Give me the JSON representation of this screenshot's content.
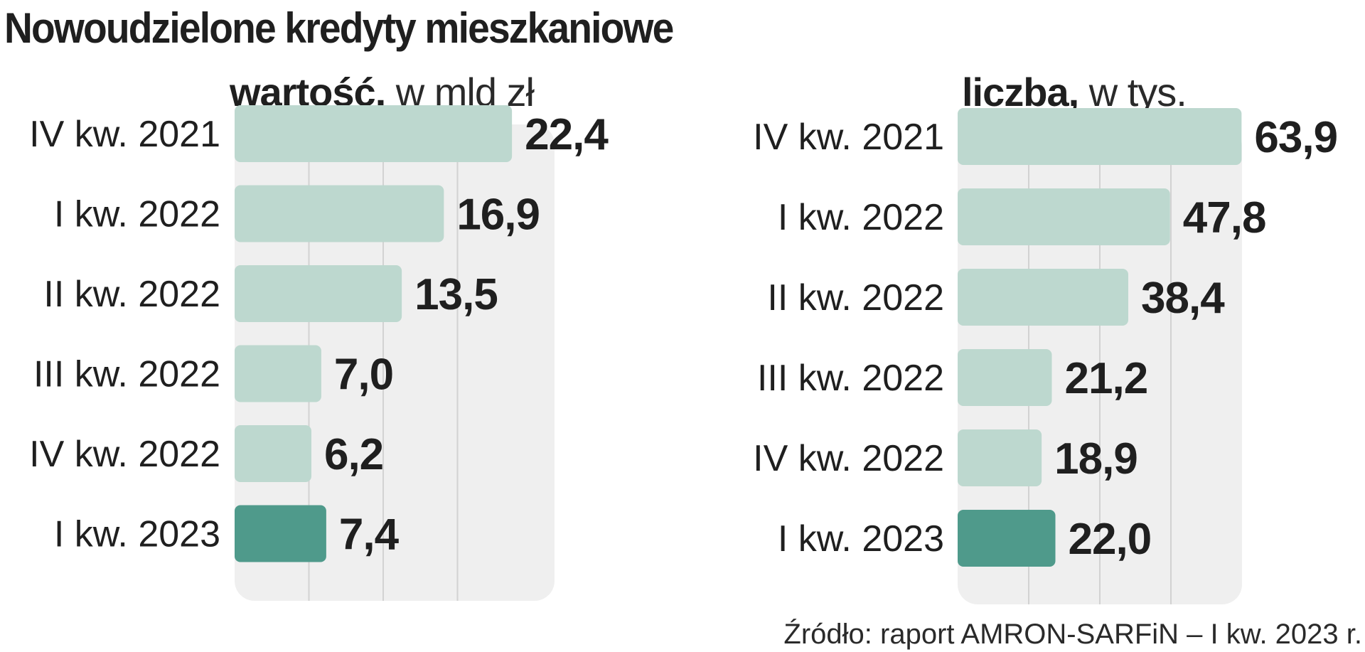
{
  "title": "Nowoudzielone kredyty mieszkaniowe",
  "source": "Źródło: raport AMRON-SARFiN – I kw. 2023 r.",
  "colors": {
    "bar": "#bdd8cf",
    "bar_highlight": "#4f9a8b",
    "panel_bg": "#efefef",
    "grid": "#d2d2d2",
    "text": "#1f1f1f"
  },
  "chart_data": [
    {
      "type": "bar",
      "orientation": "horizontal",
      "subtitle_strong": "wartość,",
      "subtitle_light": " w mld zł",
      "categories": [
        "IV kw. 2021",
        "I kw. 2022",
        "II kw. 2022",
        "III kw. 2022",
        "IV kw. 2022",
        "I kw. 2023"
      ],
      "values": [
        22.4,
        16.9,
        13.5,
        7.0,
        6.2,
        7.4
      ],
      "labels": [
        "22,4",
        "16,9",
        "13,5",
        "7,0",
        "6,2",
        "7,4"
      ],
      "highlight_index": 5,
      "xlim": [
        0,
        24
      ],
      "gridlines": [
        6,
        12,
        18
      ]
    },
    {
      "type": "bar",
      "orientation": "horizontal",
      "subtitle_strong": "liczba,",
      "subtitle_light": " w tys.",
      "categories": [
        "IV kw. 2021",
        "I kw. 2022",
        "II kw. 2022",
        "III kw. 2022",
        "IV kw. 2022",
        "I kw. 2023"
      ],
      "values": [
        63.9,
        47.8,
        38.4,
        21.2,
        18.9,
        22.0
      ],
      "labels": [
        "63,9",
        "47,8",
        "38,4",
        "21,2",
        "18,9",
        "22,0"
      ],
      "highlight_index": 5,
      "xlim": [
        0,
        64
      ],
      "gridlines": [
        16,
        32,
        48
      ]
    }
  ]
}
